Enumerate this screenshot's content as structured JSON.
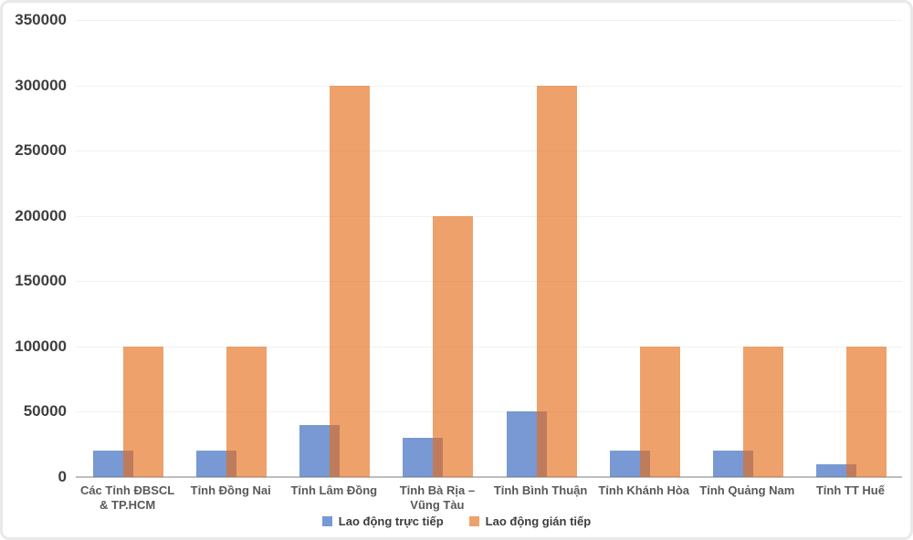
{
  "chart_data": {
    "type": "bar",
    "title": "",
    "categories": [
      "Các Tỉnh ĐBSCL & TP.HCM",
      "Tỉnh Đồng Nai",
      "Tỉnh Lâm Đồng",
      "Tỉnh Bà Rịa – Vũng Tàu",
      "Tỉnh Bình Thuận",
      "Tỉnh Khánh Hòa",
      "Tỉnh Quảng Nam",
      "Tỉnh TT Huế"
    ],
    "series": [
      {
        "name": "Lao động trực tiếp",
        "color": "#4472C4",
        "opacity": 0.72,
        "values": [
          20000,
          20000,
          40000,
          30000,
          50000,
          20000,
          20000,
          10000
        ]
      },
      {
        "name": "Lao động gián tiếp",
        "color": "#E66C18",
        "opacity": 0.64,
        "values": [
          100000,
          100000,
          300000,
          200000,
          300000,
          100000,
          100000,
          100000
        ]
      }
    ],
    "xlabel": "",
    "ylabel": "",
    "ylim": [
      0,
      350000
    ],
    "ytick_interval": 50000,
    "yticks": [
      "0",
      "50000",
      "100000",
      "150000",
      "200000",
      "250000",
      "300000",
      "350000"
    ],
    "grid": "horizontal",
    "legend_position": "bottom"
  },
  "style": {
    "gridline_color": "#F1F1F1",
    "axis_line_color": "#BDBDBD",
    "y_label_color": "#3F3F3F",
    "x_label_color": "#595959",
    "legend_text_color": "#3D3D3D",
    "background_color": "#FFFFFF",
    "frame_border_color": "#E9E9E9"
  }
}
